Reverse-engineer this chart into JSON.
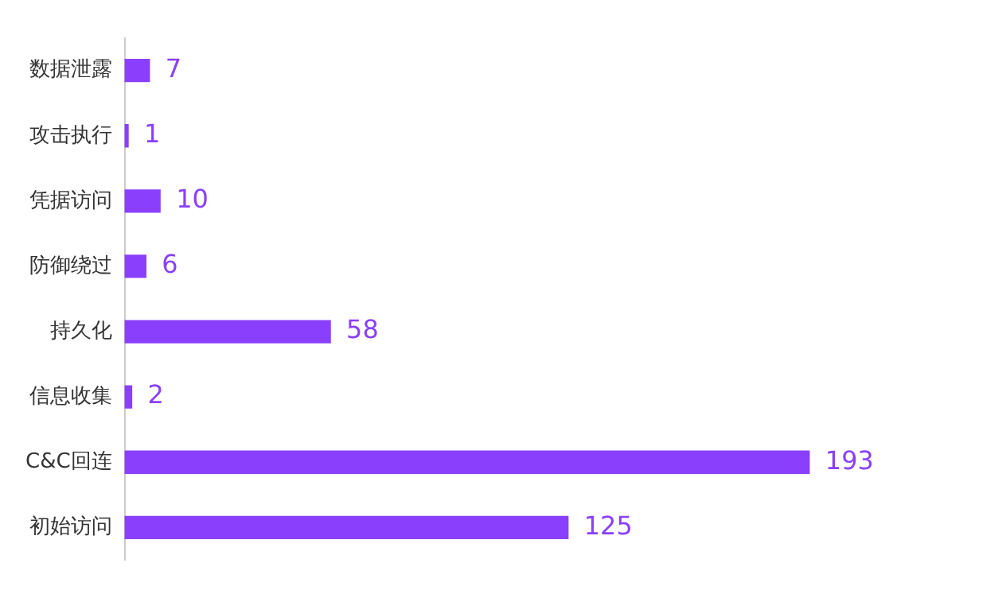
{
  "chart_data": {
    "type": "bar",
    "orientation": "horizontal",
    "categories": [
      "数据泄露",
      "攻击执行",
      "凭据访问",
      "防御绕过",
      "持久化",
      "信息收集",
      "C&C回连",
      "初始访问"
    ],
    "values": [
      7,
      1,
      10,
      6,
      58,
      2,
      193,
      125
    ],
    "color": "#8a3ffc",
    "data_labels": true,
    "legend": false,
    "tick_labels": "y"
  }
}
